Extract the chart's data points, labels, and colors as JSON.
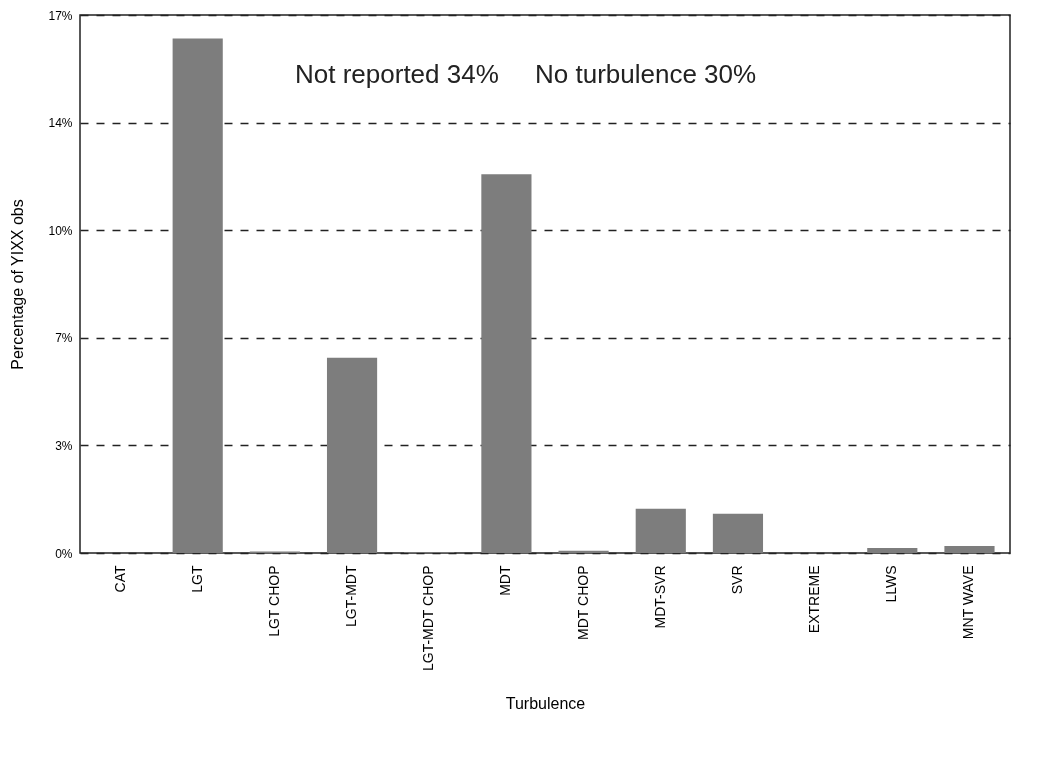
{
  "chart_data": {
    "type": "bar",
    "xlabel": "Turbulence",
    "ylabel": "Percentage of YIXX obs",
    "categories": [
      "CAT",
      "LGT",
      "LGT CHOP",
      "LGT-MDT",
      "LGT-MDT CHOP",
      "MDT",
      "MDT CHOP",
      "MDT-SVR",
      "SVR",
      "EXTREME",
      "LLWS",
      "MNT WAVE"
    ],
    "values": [
      0,
      16.26,
      0.05,
      6.17,
      0.02,
      11.97,
      0.07,
      1.4,
      1.24,
      0,
      0.16,
      0.22
    ],
    "color": "#7d7d7d",
    "ylim": [
      0,
      17
    ],
    "yticks": [
      {
        "value": 0,
        "label": "0%"
      },
      {
        "value": 3.4,
        "label": "3%"
      },
      {
        "value": 6.8,
        "label": "7%"
      },
      {
        "value": 10.2,
        "label": "10%"
      },
      {
        "value": 13.6,
        "label": "14%"
      },
      {
        "value": 17,
        "label": "17%"
      }
    ],
    "grid": "y",
    "line_style": "dashed",
    "annotations": [
      "Not reported 34%",
      "No turbulence 30%"
    ]
  }
}
